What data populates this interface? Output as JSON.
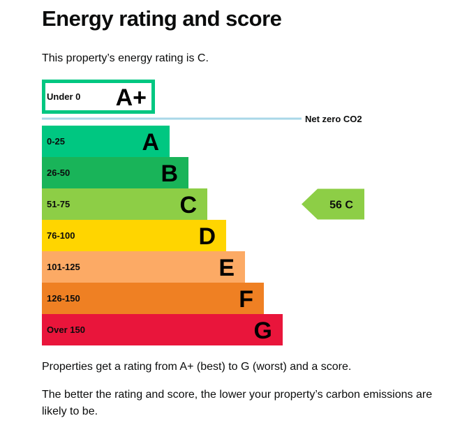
{
  "page": {
    "title": "Energy rating and score",
    "intro": "This property’s energy rating is C.",
    "footer_paragraphs": [
      "Properties get a rating from A+ (best) to G (worst) and a score.",
      "The better the rating and score, the lower your property’s carbon emissions are likely to be."
    ]
  },
  "chart_data": {
    "type": "bar",
    "title": "",
    "net_zero_label": "Net zero CO2",
    "bands": [
      {
        "letter": "A+",
        "range": "Under 0",
        "color": "#00c781",
        "style": "outline"
      },
      {
        "letter": "A",
        "range": "0-25",
        "color": "#00c781",
        "style": "filled"
      },
      {
        "letter": "B",
        "range": "26-50",
        "color": "#19b459",
        "style": "filled"
      },
      {
        "letter": "C",
        "range": "51-75",
        "color": "#8dce46",
        "style": "filled"
      },
      {
        "letter": "D",
        "range": "76-100",
        "color": "#ffd500",
        "style": "filled"
      },
      {
        "letter": "E",
        "range": "101-125",
        "color": "#fcaa65",
        "style": "filled"
      },
      {
        "letter": "F",
        "range": "126-150",
        "color": "#ef8023",
        "style": "filled"
      },
      {
        "letter": "G",
        "range": "Over 150",
        "color": "#e9153b",
        "style": "filled"
      }
    ],
    "current": {
      "score": 56,
      "letter": "C",
      "label": "56 C",
      "color": "#8dce46"
    },
    "net_zero_line_color": "#a9d7e8"
  }
}
